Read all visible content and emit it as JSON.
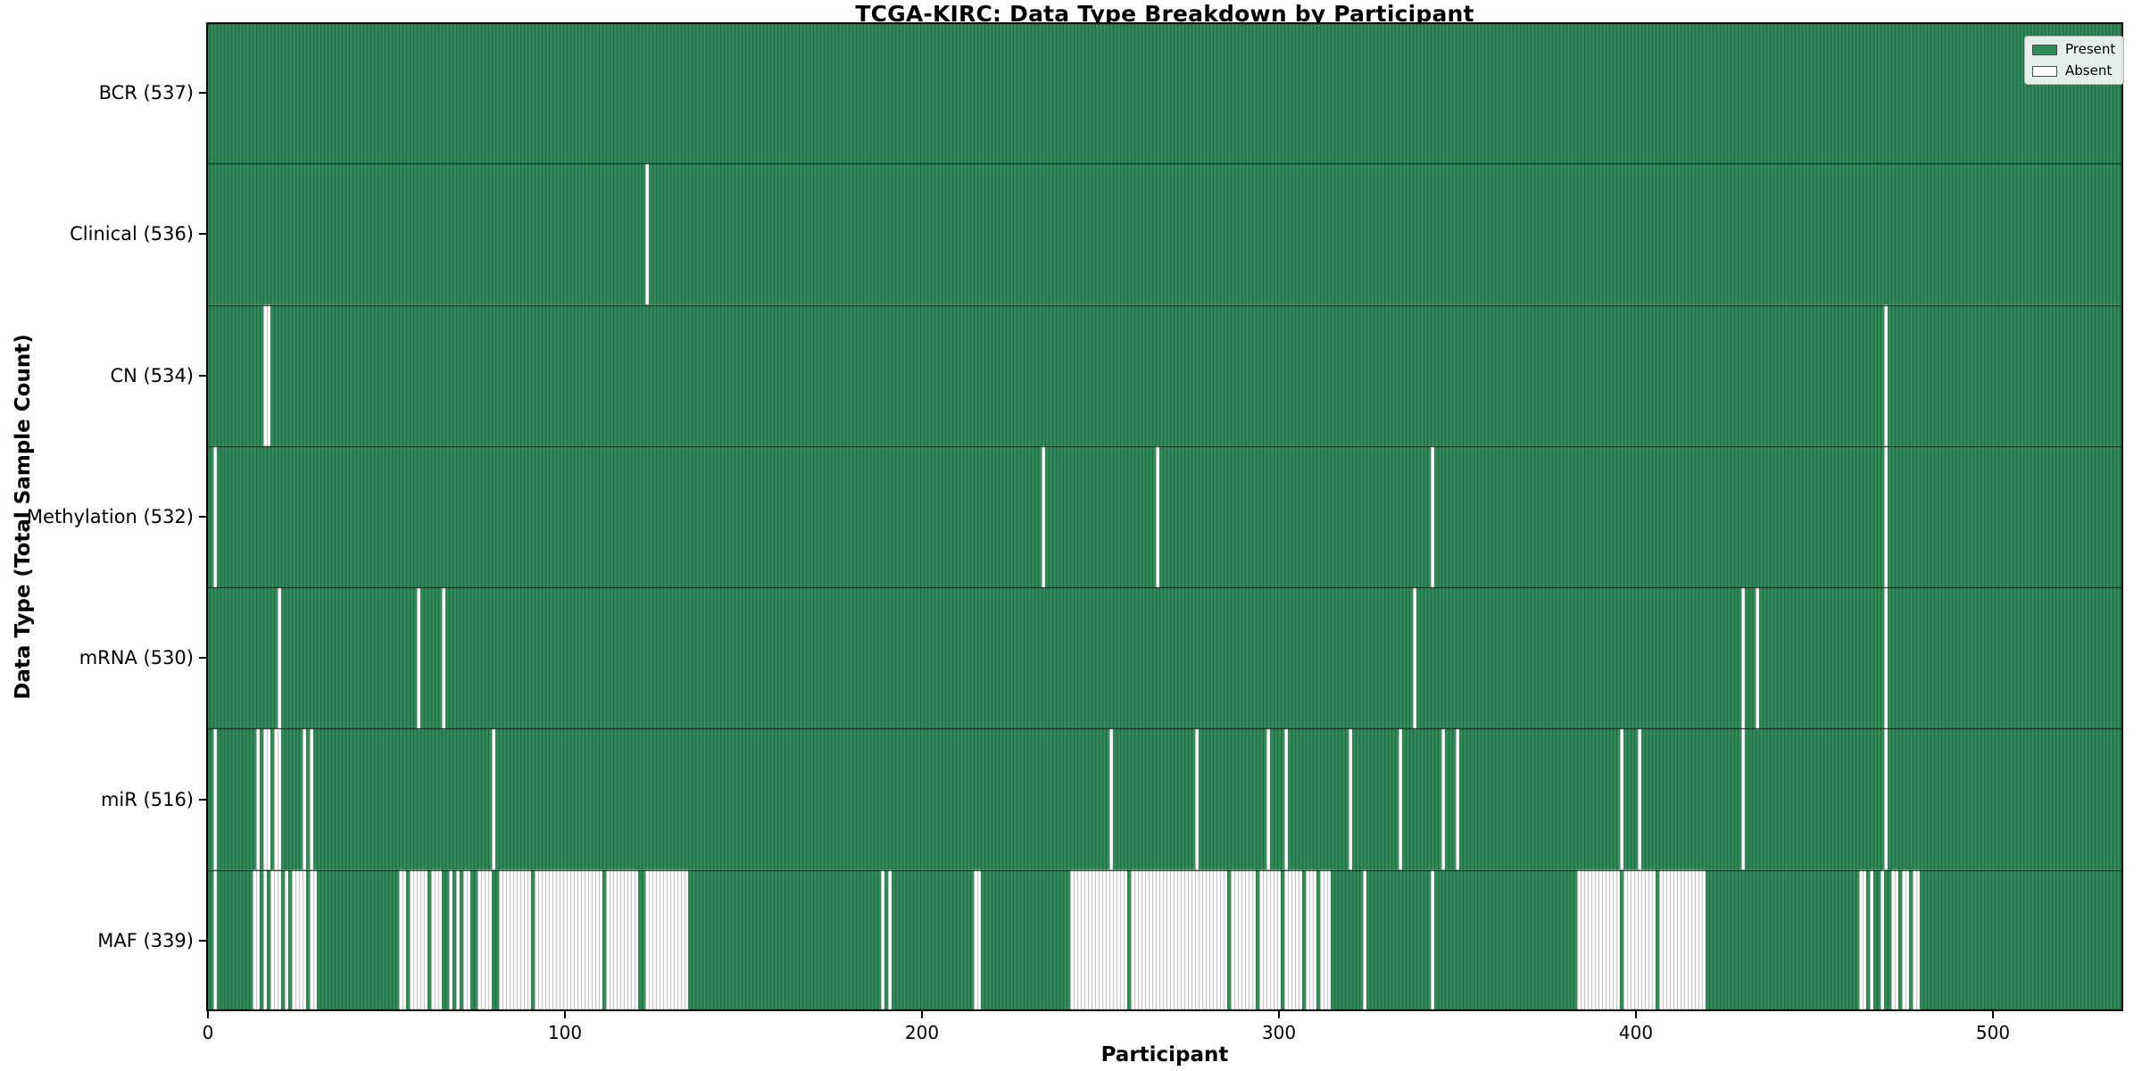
{
  "chart_data": {
    "type": "heatmap",
    "title": "TCGA-KIRC: Data Type Breakdown by Participant",
    "xlabel": "Participant",
    "ylabel": "Data Type (Total Sample Count)",
    "n_participants": 537,
    "xlim": [
      -0.5,
      536.5
    ],
    "x_ticks": [
      0,
      100,
      200,
      300,
      400,
      500
    ],
    "grid": false,
    "legend": {
      "position": "upper right",
      "entries": [
        {
          "label": "Present",
          "color": "#2e8b57"
        },
        {
          "label": "Absent",
          "color": "#ffffff"
        }
      ]
    },
    "colors": {
      "present": "#318b58",
      "absent": "#ffffff",
      "bar_edge": "rgba(0,0,0,0.40)",
      "row_separator": "#1a1a1a",
      "plot_border": "#000000"
    },
    "rows": [
      {
        "data_type": "BCR",
        "label": "BCR (537)",
        "total": 537,
        "absent_ranges": []
      },
      {
        "data_type": "Clinical",
        "label": "Clinical (536)",
        "total": 536,
        "absent_ranges": [
          [
            123,
            123
          ]
        ]
      },
      {
        "data_type": "CN",
        "label": "CN (534)",
        "total": 534,
        "absent_ranges": [
          [
            16,
            17
          ],
          [
            470,
            470
          ]
        ]
      },
      {
        "data_type": "Methylation",
        "label": "Methylation (532)",
        "total": 532,
        "absent_ranges": [
          [
            2,
            2
          ],
          [
            234,
            234
          ],
          [
            266,
            266
          ],
          [
            343,
            343
          ],
          [
            470,
            470
          ]
        ]
      },
      {
        "data_type": "mRNA",
        "label": "mRNA (530)",
        "total": 530,
        "absent_ranges": [
          [
            20,
            20
          ],
          [
            59,
            59
          ],
          [
            66,
            66
          ],
          [
            338,
            338
          ],
          [
            430,
            430
          ],
          [
            434,
            434
          ],
          [
            470,
            470
          ]
        ]
      },
      {
        "data_type": "miR",
        "label": "miR (516)",
        "total": 516,
        "absent_ranges": [
          [
            2,
            2
          ],
          [
            14,
            14
          ],
          [
            16,
            17
          ],
          [
            19,
            20
          ],
          [
            27,
            27
          ],
          [
            29,
            29
          ],
          [
            80,
            80
          ],
          [
            253,
            253
          ],
          [
            277,
            277
          ],
          [
            297,
            297
          ],
          [
            302,
            302
          ],
          [
            320,
            320
          ],
          [
            334,
            334
          ],
          [
            346,
            346
          ],
          [
            350,
            350
          ],
          [
            396,
            396
          ],
          [
            401,
            401
          ],
          [
            430,
            430
          ],
          [
            470,
            470
          ]
        ]
      },
      {
        "data_type": "MAF",
        "label": "MAF (339)",
        "total": 339,
        "absent_ranges": [
          [
            2,
            2
          ],
          [
            13,
            14
          ],
          [
            16,
            16
          ],
          [
            18,
            20
          ],
          [
            22,
            22
          ],
          [
            24,
            27
          ],
          [
            29,
            30
          ],
          [
            54,
            55
          ],
          [
            57,
            61
          ],
          [
            63,
            65
          ],
          [
            68,
            68
          ],
          [
            70,
            70
          ],
          [
            72,
            73
          ],
          [
            76,
            79
          ],
          [
            82,
            90
          ],
          [
            92,
            110
          ],
          [
            112,
            120
          ],
          [
            123,
            134
          ],
          [
            189,
            189
          ],
          [
            191,
            191
          ],
          [
            215,
            216
          ],
          [
            242,
            257
          ],
          [
            259,
            285
          ],
          [
            287,
            293
          ],
          [
            295,
            300
          ],
          [
            302,
            306
          ],
          [
            308,
            310
          ],
          [
            312,
            314
          ],
          [
            324,
            324
          ],
          [
            343,
            343
          ],
          [
            384,
            395
          ],
          [
            397,
            405
          ],
          [
            407,
            419
          ],
          [
            463,
            464
          ],
          [
            466,
            466
          ],
          [
            469,
            469
          ],
          [
            472,
            473
          ],
          [
            475,
            476
          ],
          [
            478,
            479
          ]
        ]
      }
    ]
  }
}
